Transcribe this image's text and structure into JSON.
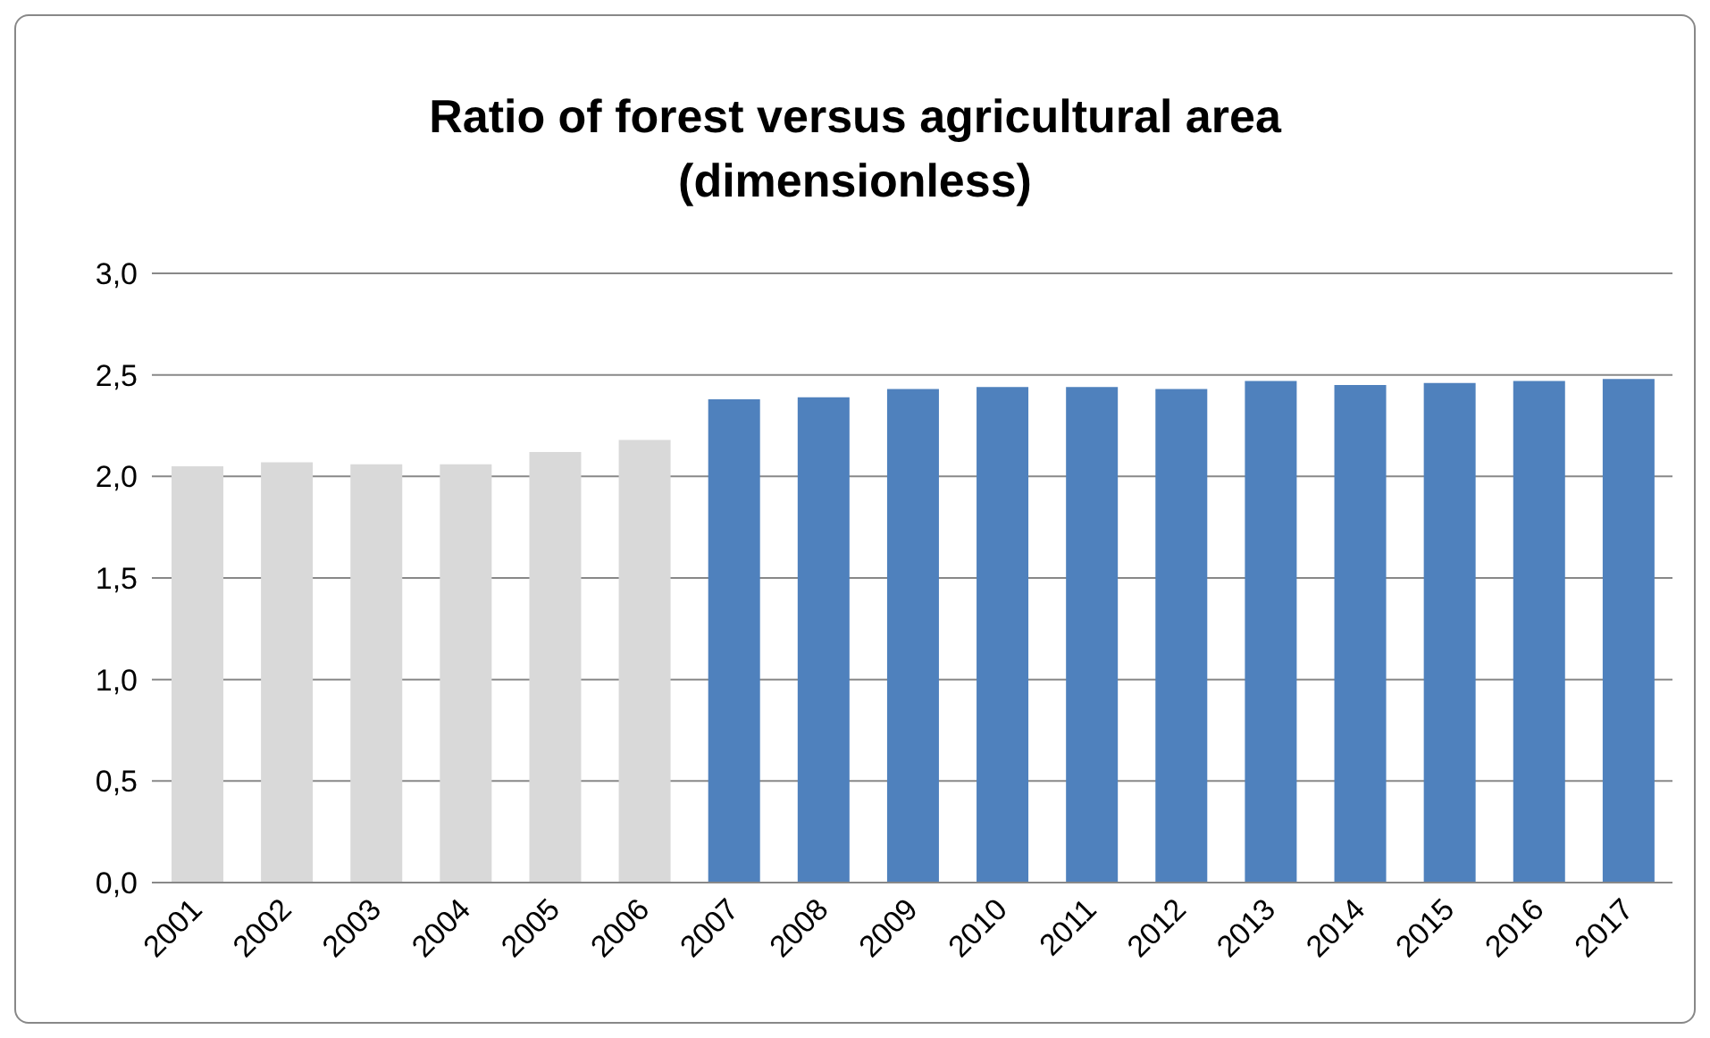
{
  "chart_data": {
    "type": "bar",
    "title": "Ratio of forest versus agricultural area\n(dimensionless)",
    "categories": [
      "2001",
      "2002",
      "2003",
      "2004",
      "2005",
      "2006",
      "2007",
      "2008",
      "2009",
      "2010",
      "2011",
      "2012",
      "2013",
      "2014",
      "2015",
      "2016",
      "2017"
    ],
    "values": [
      2.05,
      2.07,
      2.06,
      2.06,
      2.12,
      2.18,
      2.38,
      2.39,
      2.43,
      2.44,
      2.44,
      2.43,
      2.47,
      2.45,
      2.46,
      2.47,
      2.48
    ],
    "colors": [
      "#d9d9d9",
      "#d9d9d9",
      "#d9d9d9",
      "#d9d9d9",
      "#d9d9d9",
      "#d9d9d9",
      "#4f81bd",
      "#4f81bd",
      "#4f81bd",
      "#4f81bd",
      "#4f81bd",
      "#4f81bd",
      "#4f81bd",
      "#4f81bd",
      "#4f81bd",
      "#4f81bd",
      "#4f81bd"
    ],
    "ylim": [
      0,
      3
    ],
    "yticks": [
      {
        "value": 0,
        "label": "0,0"
      },
      {
        "value": 0.5,
        "label": "0,5"
      },
      {
        "value": 1,
        "label": "1,0"
      },
      {
        "value": 1.5,
        "label": "1,5"
      },
      {
        "value": 2,
        "label": "2,0"
      },
      {
        "value": 2.5,
        "label": "2,5"
      },
      {
        "value": 3,
        "label": "3,0"
      }
    ],
    "grid": "y"
  }
}
